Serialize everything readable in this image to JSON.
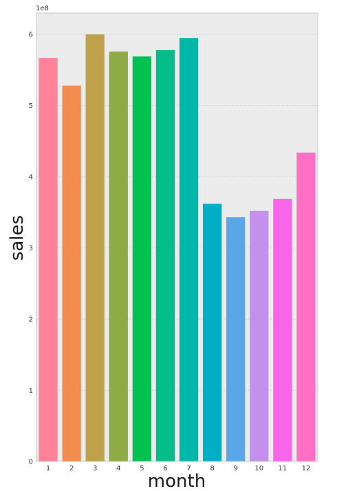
{
  "chart_data": {
    "type": "bar",
    "title": "",
    "xlabel": "month",
    "ylabel": "sales",
    "y_offset_label": "1e8",
    "categories": [
      "1",
      "2",
      "3",
      "4",
      "5",
      "6",
      "7",
      "8",
      "9",
      "10",
      "11",
      "12"
    ],
    "values": [
      5.67,
      5.28,
      6.0,
      5.76,
      5.69,
      5.78,
      5.95,
      3.62,
      3.43,
      3.52,
      3.69,
      4.34
    ],
    "value_scale": 100000000,
    "ylim": [
      0,
      6.3
    ],
    "yticks": [
      0,
      1,
      2,
      3,
      4,
      5,
      6
    ],
    "ytick_labels": [
      "0",
      "1",
      "2",
      "3",
      "4",
      "5",
      "6"
    ],
    "grid": "horizontal",
    "colors": [
      "#ff8298",
      "#f28d4f",
      "#bea148",
      "#8fab45",
      "#00c250",
      "#00bd89",
      "#00b8a9",
      "#00aec6",
      "#5aa6e6",
      "#c490ee",
      "#f864ea",
      "#ff6fc5"
    ],
    "background": "#ececec",
    "grid_color": "#d0d0d0"
  }
}
